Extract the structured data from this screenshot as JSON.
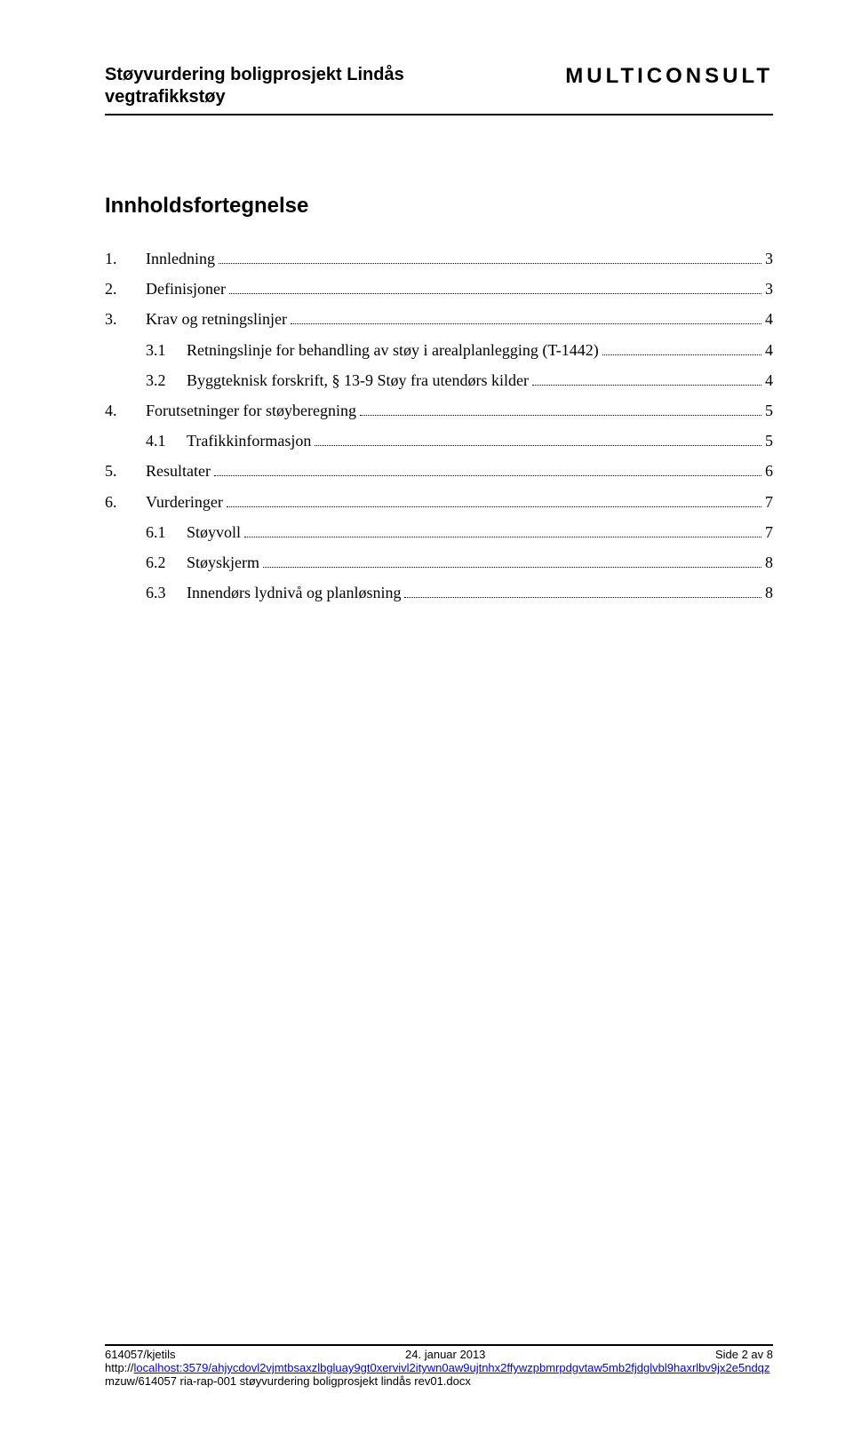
{
  "header": {
    "title_line1": "Støyvurdering boligprosjekt Lindås",
    "title_line2": "vegtrafikkstøy",
    "brand": "MULTICONSULT"
  },
  "toc": {
    "title": "Innholdsfortegnelse",
    "items": [
      {
        "num": "1.",
        "label": "Innledning",
        "page": "3",
        "sub": false
      },
      {
        "num": "2.",
        "label": "Definisjoner",
        "page": "3",
        "sub": false
      },
      {
        "num": "3.",
        "label": "Krav og retningslinjer",
        "page": "4",
        "sub": false
      },
      {
        "num": "3.1",
        "label": "Retningslinje for behandling av støy i arealplanlegging (T-1442)",
        "page": "4",
        "sub": true
      },
      {
        "num": "3.2",
        "label": "Byggteknisk forskrift, § 13-9 Støy fra utendørs kilder",
        "page": "4",
        "sub": true
      },
      {
        "num": "4.",
        "label": "Forutsetninger for støyberegning",
        "page": "5",
        "sub": false
      },
      {
        "num": "4.1",
        "label": "Trafikkinformasjon",
        "page": "5",
        "sub": true
      },
      {
        "num": "5.",
        "label": "Resultater",
        "page": "6",
        "sub": false
      },
      {
        "num": "6.",
        "label": "Vurderinger",
        "page": "7",
        "sub": false
      },
      {
        "num": "6.1",
        "label": "Støyvoll",
        "page": "7",
        "sub": true
      },
      {
        "num": "6.2",
        "label": "Støyskjerm",
        "page": "8",
        "sub": true
      },
      {
        "num": "6.3",
        "label": "Innendørs lydnivå og planløsning",
        "page": "8",
        "sub": true
      }
    ]
  },
  "footer": {
    "left": "614057/kjetils",
    "center": "24. januar 2013",
    "right": "Side 2 av 8",
    "line2_prefix": "http://",
    "line2_link": "localhost:3579/ahjycdovl2vjmtbsaxzlbgluay9gt0xervivl2itywn0aw9ujtnhx2ffywzpbmrpdgvtaw5mb2fjdglvbl9haxrlbv9jx2e5ndqz",
    "line3": "mzuw/614057 ria-rap-001 støyvurdering boligprosjekt lindås rev01.docx"
  }
}
